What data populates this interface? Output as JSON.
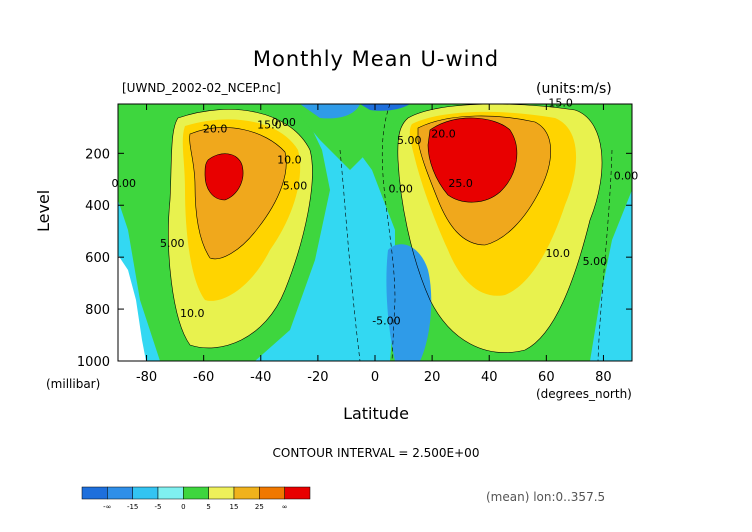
{
  "chart_data": {
    "type": "heatmap",
    "title": "Monthly Mean U-wind",
    "dataset": "[UWND_2002-02_NCEP.nc]",
    "units": "(units:m/s)",
    "xlabel": "Latitude",
    "xunit": "(degrees_north)",
    "ylabel": "Level",
    "yunit": "(millibar)",
    "xlim": [
      -90,
      90
    ],
    "ylim": [
      1000,
      10
    ],
    "x_ticks": [
      "-80",
      "-60",
      "-40",
      "-20",
      "0",
      "20",
      "40",
      "60",
      "80"
    ],
    "x_tick_values": [
      -80,
      -60,
      -40,
      -20,
      0,
      20,
      40,
      60,
      80
    ],
    "y_ticks": [
      "200",
      "400",
      "600",
      "800",
      "1000"
    ],
    "y_tick_values": [
      200,
      400,
      600,
      800,
      1000
    ],
    "contour_interval": "CONTOUR INTERVAL = 2.500E+00",
    "footer": "(mean) lon:0..357.5",
    "contour_labels": [
      {
        "text": "20.0",
        "x": -56,
        "y": 120
      },
      {
        "text": "15.0",
        "x": -37,
        "y": 105
      },
      {
        "text": "0.00",
        "x": -32,
        "y": 95
      },
      {
        "text": "10.0",
        "x": -30,
        "y": 240
      },
      {
        "text": "5.00",
        "x": -28,
        "y": 340
      },
      {
        "text": "0.00",
        "x": -88,
        "y": 330
      },
      {
        "text": "5.00",
        "x": -71,
        "y": 560
      },
      {
        "text": "10.0",
        "x": -64,
        "y": 830
      },
      {
        "text": "5.00",
        "x": 12,
        "y": 165
      },
      {
        "text": "20.0",
        "x": 24,
        "y": 140
      },
      {
        "text": "15.0",
        "x": 65,
        "y": 20
      },
      {
        "text": "0.00",
        "x": 9,
        "y": 350
      },
      {
        "text": "25.0",
        "x": 30,
        "y": 330
      },
      {
        "text": "10.0",
        "x": 64,
        "y": 600
      },
      {
        "text": "5.00",
        "x": 77,
        "y": 630
      },
      {
        "text": "0.00",
        "x": 98,
        "y": 300
      },
      {
        "text": "-5.00",
        "x": 4,
        "y": 860
      }
    ],
    "colorbar": {
      "labels": [
        "-∞",
        "-15",
        "-5",
        "0",
        "5",
        "15",
        "25",
        "∞"
      ],
      "colors": [
        "#1e6fdc",
        "#2f8fe8",
        "#33c4f2",
        "#7ff0f0",
        "#3ed63e",
        "#eef05a",
        "#f0b21c",
        "#f07800",
        "#e80000"
      ]
    },
    "fill_colors": {
      "negative_strong": "#1e6fdc",
      "negative": "#2f9be8",
      "near_zero_negative": "#33d8f2",
      "low": "#3ed63e",
      "mid": "#e8f24e",
      "high": "#ffd400",
      "higher": "#f0a81c",
      "max": "#e80000"
    }
  }
}
